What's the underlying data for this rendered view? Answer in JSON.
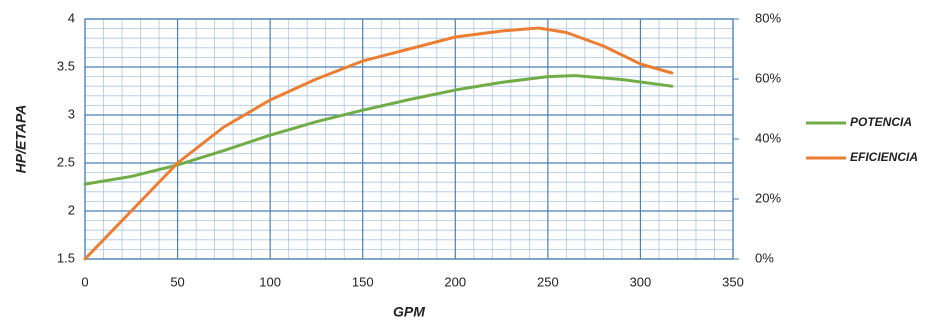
{
  "chart_data": {
    "type": "line",
    "x_label": "GPM",
    "y_label": "HP/ETAPA",
    "xlim": [
      0,
      350
    ],
    "xticks": [
      0,
      50,
      100,
      150,
      200,
      250,
      300,
      350
    ],
    "ylim": [
      1.5,
      4
    ],
    "yticks": [
      1.5,
      2,
      2.5,
      3,
      3.5,
      4
    ],
    "y2lim": [
      0,
      80
    ],
    "y2ticks": [
      {
        "value": 0,
        "label": "0%"
      },
      {
        "value": 20,
        "label": "20%"
      },
      {
        "value": 40,
        "label": "40%"
      },
      {
        "value": 60,
        "label": "60%"
      },
      {
        "value": 80,
        "label": "80%"
      }
    ],
    "grid": true,
    "minor_grid": true,
    "legend": "right",
    "series": [
      {
        "name": "POTENCIA",
        "color": "#70ad47",
        "x": [
          0,
          25,
          50,
          75,
          100,
          125,
          150,
          175,
          200,
          225,
          250,
          265,
          290,
          317
        ],
        "values": [
          2.28,
          2.36,
          2.48,
          2.63,
          2.79,
          2.93,
          3.05,
          3.16,
          3.26,
          3.34,
          3.4,
          3.41,
          3.37,
          3.3
        ]
      },
      {
        "name": "EFICIENCIA",
        "color": "#ed7d31",
        "axis": "y2",
        "x": [
          0,
          25,
          50,
          75,
          100,
          125,
          150,
          175,
          200,
          225,
          245,
          260,
          280,
          300,
          317
        ],
        "values": [
          0,
          16,
          32,
          44,
          53,
          60,
          66,
          70,
          74,
          76,
          77,
          75.5,
          71,
          65,
          62
        ]
      }
    ]
  }
}
